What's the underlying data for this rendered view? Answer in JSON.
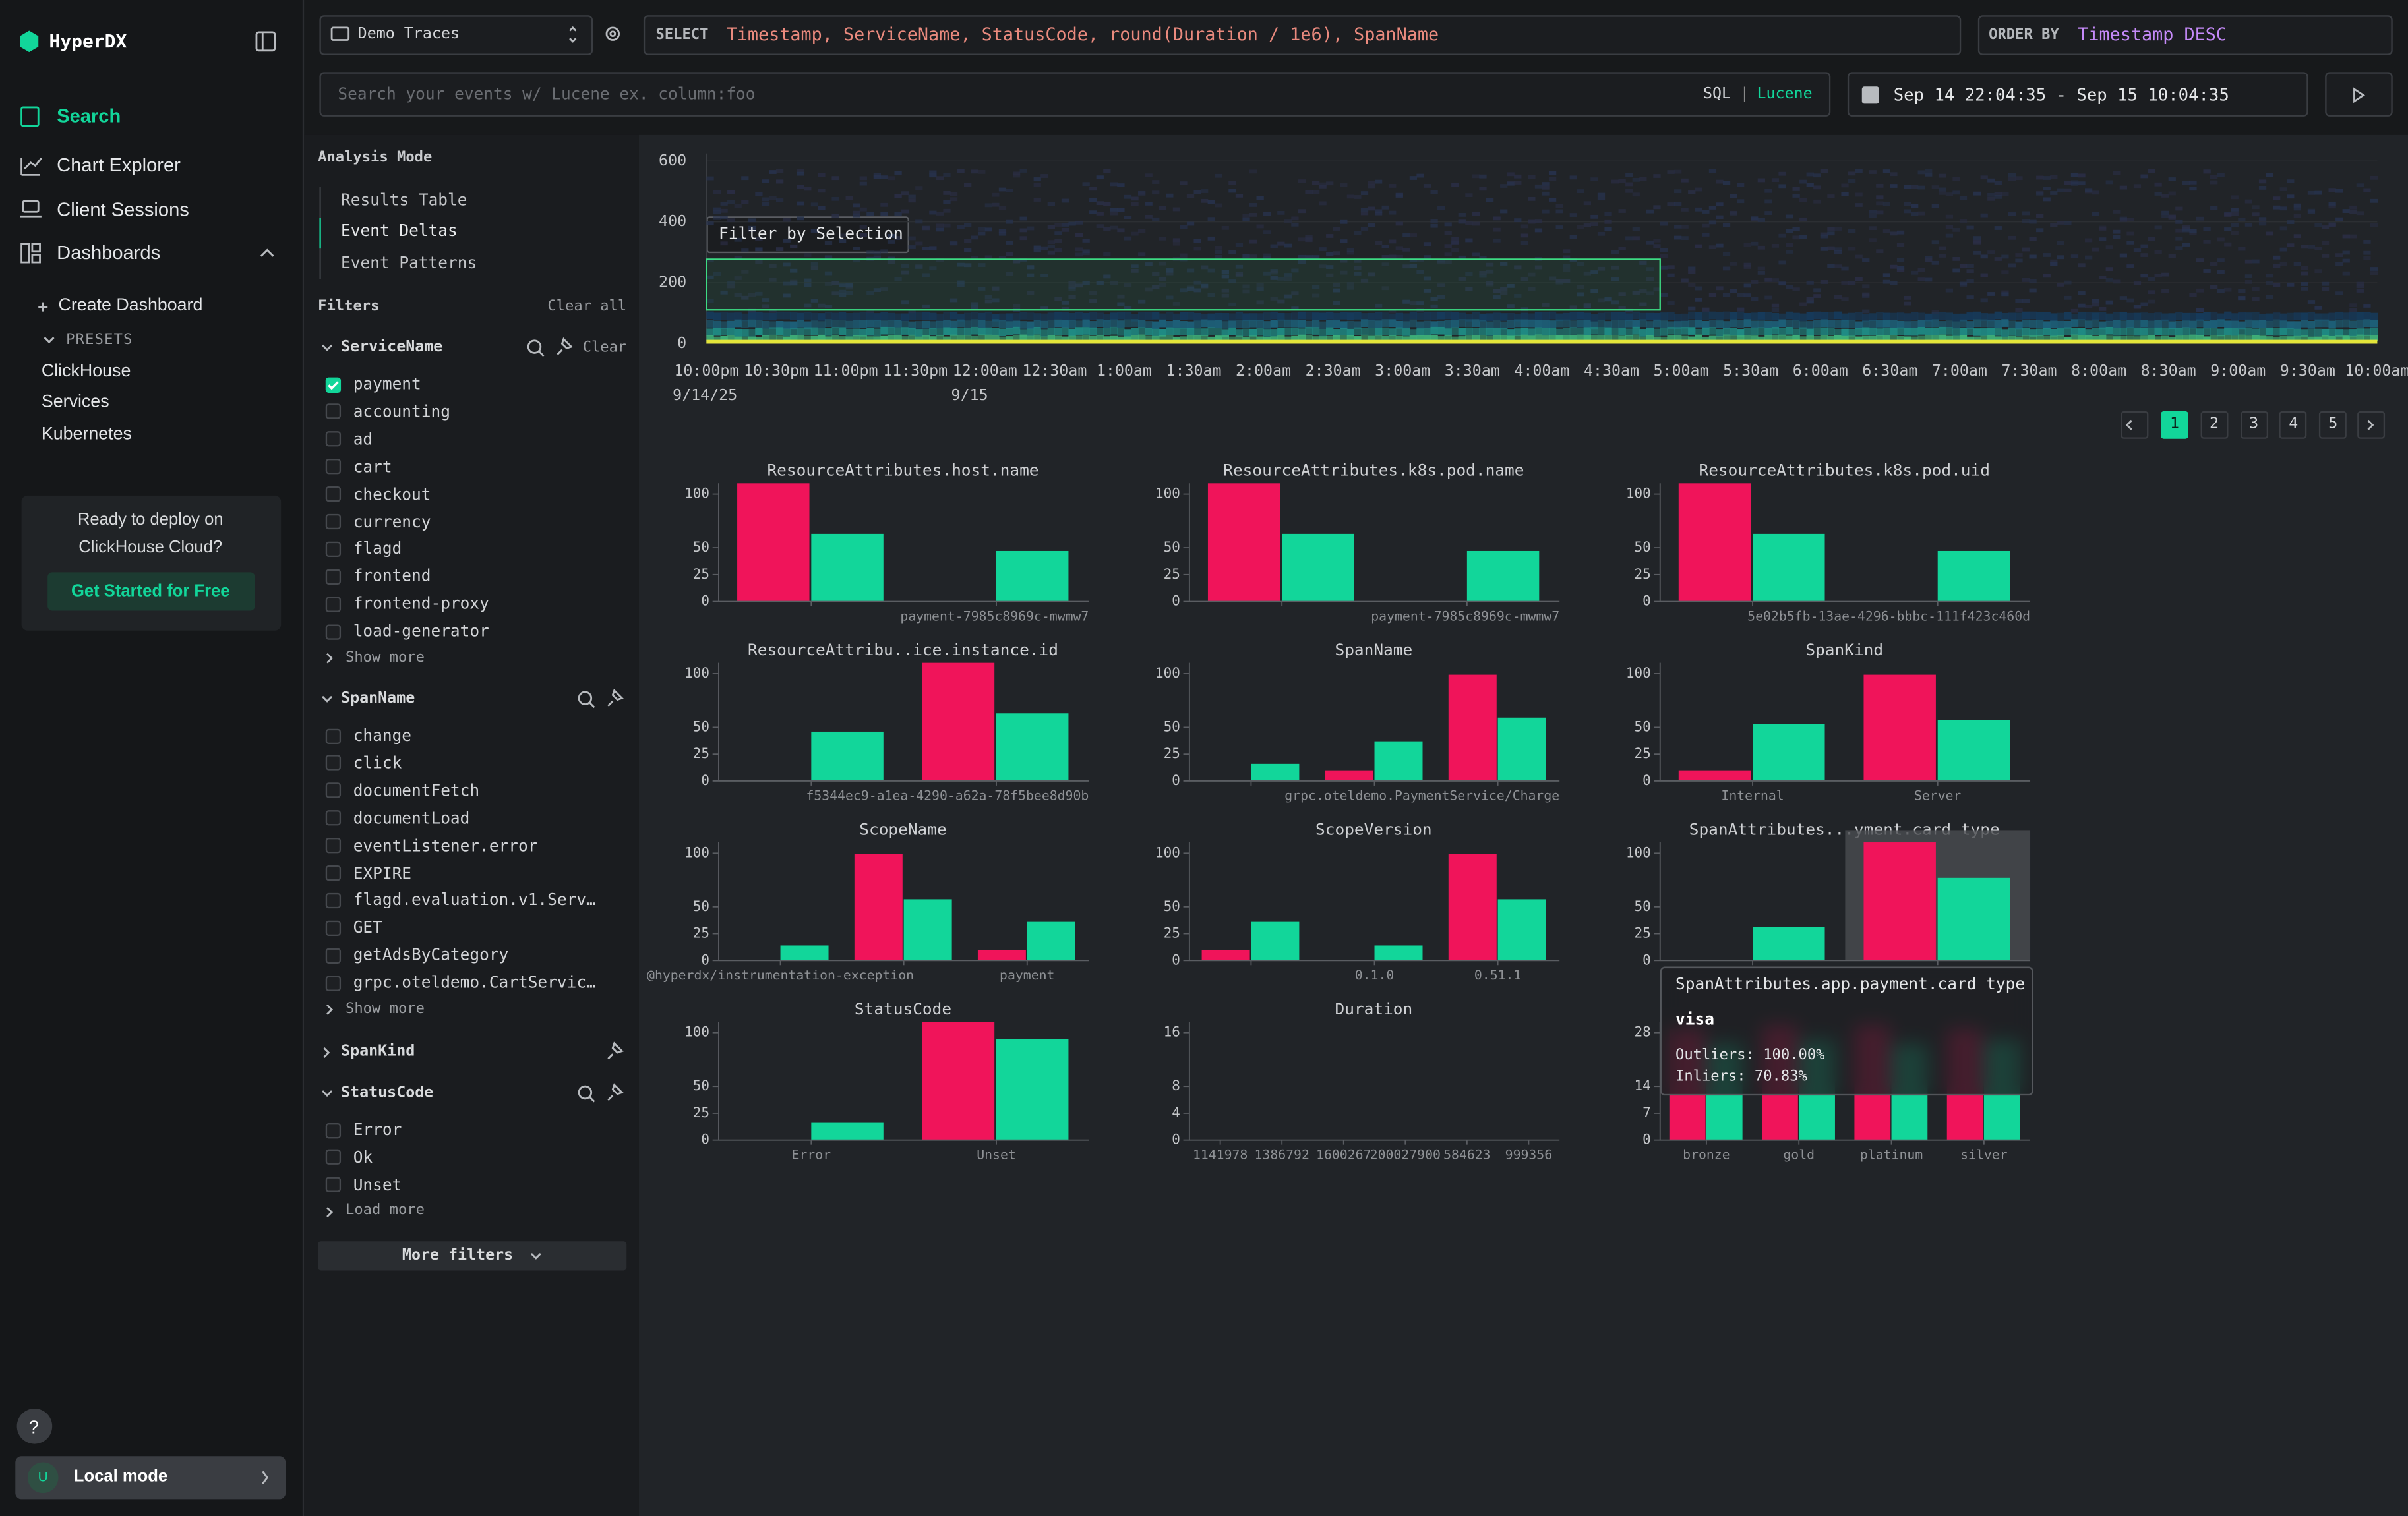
{
  "sidebar": {
    "logo": "HyperDX",
    "nav": [
      "Search",
      "Chart Explorer",
      "Client Sessions",
      "Dashboards"
    ],
    "create_dashboard": "Create Dashboard",
    "presets_label": "PRESETS",
    "presets": [
      "ClickHouse",
      "Services",
      "Kubernetes"
    ],
    "promo_text": "Ready to deploy on ClickHouse Cloud?",
    "promo_button": "Get Started for Free",
    "help": "?",
    "user_initial": "U",
    "user_mode": "Local mode"
  },
  "query": {
    "source": "Demo Traces",
    "select_keyword": "SELECT",
    "select_expression": "Timestamp, ServiceName, StatusCode, round(Duration / 1e6), SpanName",
    "order_keyword": "ORDER BY",
    "order_expression": "Timestamp DESC",
    "search_placeholder": "Search your events w/ Lucene ex. column:foo",
    "language_sql": "SQL",
    "language_separator": "|",
    "language_lucene": "Lucene",
    "time_range": "Sep 14 22:04:35 - Sep 15 10:04:35"
  },
  "analysis": {
    "label": "Analysis Mode",
    "options": [
      "Results Table",
      "Event Deltas",
      "Event Patterns"
    ],
    "selected": 1
  },
  "filters": {
    "label": "Filters",
    "clear_all": "Clear all",
    "groups": [
      {
        "name": "ServiceName",
        "clear": "Clear",
        "options": [
          "payment",
          "accounting",
          "ad",
          "cart",
          "checkout",
          "currency",
          "flagd",
          "frontend",
          "frontend-proxy",
          "load-generator"
        ],
        "checked": [
          0
        ],
        "more": "Show more"
      },
      {
        "name": "SpanName",
        "options": [
          "change",
          "click",
          "documentFetch",
          "documentLoad",
          "eventListener.error",
          "EXPIRE",
          "flagd.evaluation.v1.Serv…",
          "GET",
          "getAdsByCategory",
          "grpc.oteldemo.CartServic…"
        ],
        "checked": [],
        "more": "Show more"
      },
      {
        "name": "SpanKind"
      },
      {
        "name": "StatusCode",
        "options": [
          "Error",
          "Ok",
          "Unset"
        ],
        "checked": [],
        "more": "Load more"
      }
    ],
    "more_filters": "More filters"
  },
  "heatmap": {
    "ylim": [
      0,
      625
    ],
    "yticks": [
      0,
      200,
      400,
      600
    ],
    "xticks": [
      "10:00pm",
      "10:30pm",
      "11:00pm",
      "11:30pm",
      "12:00am",
      "12:30am",
      "1:00am",
      "1:30am",
      "2:00am",
      "2:30am",
      "3:00am",
      "3:30am",
      "4:00am",
      "4:30am",
      "5:00am",
      "5:30am",
      "6:00am",
      "6:30am",
      "7:00am",
      "7:30am",
      "8:00am",
      "8:30am",
      "9:00am",
      "9:30am",
      "10:00am"
    ],
    "xtick_dates": [
      "9/14/25",
      null,
      null,
      null,
      "9/15",
      null,
      null,
      null,
      null,
      null,
      null,
      null,
      null,
      null,
      null,
      null,
      null,
      null,
      null,
      null,
      null,
      null,
      null,
      null,
      null
    ],
    "selection_label": "Filter by Selection"
  },
  "pagination": {
    "pages": [
      1,
      2,
      3,
      4,
      5
    ],
    "current": 0
  },
  "chart_data": [
    {
      "type": "bar",
      "title": "ResourceAttributes.host.name",
      "categories": [
        null,
        "payment-7985c8969c-mwmw7"
      ],
      "ylim": [
        0,
        110
      ],
      "yticks": [
        0,
        25,
        50,
        100
      ],
      "series": [
        {
          "color": "#f0145a",
          "values": [
            110,
            0
          ]
        },
        {
          "color": "#12d69a",
          "values": [
            63,
            47
          ]
        }
      ]
    },
    {
      "type": "bar",
      "title": "ResourceAttributes.k8s.pod.name",
      "categories": [
        null,
        "payment-7985c8969c-mwmw7"
      ],
      "ylim": [
        0,
        110
      ],
      "yticks": [
        0,
        25,
        50,
        100
      ],
      "series": [
        {
          "color": "#f0145a",
          "values": [
            110,
            0
          ]
        },
        {
          "color": "#12d69a",
          "values": [
            63,
            47
          ]
        }
      ]
    },
    {
      "type": "bar",
      "title": "ResourceAttributes.k8s.pod.uid",
      "categories": [
        null,
        "5e02b5fb-13ae-4296-bbbc-111f423c460d"
      ],
      "ylim": [
        0,
        110
      ],
      "yticks": [
        0,
        25,
        50,
        100
      ],
      "series": [
        {
          "color": "#f0145a",
          "values": [
            110,
            0
          ]
        },
        {
          "color": "#12d69a",
          "values": [
            63,
            47
          ]
        }
      ]
    },
    {
      "type": "bar",
      "title": "ResourceAttribu..ice.instance.id",
      "categories": [
        null,
        "f5344ec9-a1ea-4290-a62a-78f5bee8d90b"
      ],
      "ylim": [
        0,
        110
      ],
      "yticks": [
        0,
        25,
        50,
        100
      ],
      "series": [
        {
          "color": "#f0145a",
          "values": [
            0,
            110
          ]
        },
        {
          "color": "#12d69a",
          "values": [
            46,
            63
          ]
        }
      ]
    },
    {
      "type": "bar",
      "title": "SpanName",
      "categories": [
        null,
        null,
        "grpc.oteldemo.PaymentService/Charge"
      ],
      "ylim": [
        0,
        110
      ],
      "yticks": [
        0,
        25,
        50,
        100
      ],
      "series": [
        {
          "color": "#f0145a",
          "values": [
            0,
            10,
            99
          ]
        },
        {
          "color": "#12d69a",
          "values": [
            16,
            37,
            59
          ]
        }
      ]
    },
    {
      "type": "bar",
      "title": "SpanKind",
      "categories": [
        "Internal",
        "Server"
      ],
      "ylim": [
        0,
        110
      ],
      "yticks": [
        0,
        25,
        50,
        100
      ],
      "series": [
        {
          "color": "#f0145a",
          "values": [
            10,
            99
          ]
        },
        {
          "color": "#12d69a",
          "values": [
            53,
            57
          ]
        }
      ]
    },
    {
      "type": "bar",
      "title": "ScopeName",
      "categories": [
        "@hyperdx/instrumentation-exception",
        null,
        "payment"
      ],
      "ylim": [
        0,
        110
      ],
      "yticks": [
        0,
        25,
        50,
        100
      ],
      "series": [
        {
          "color": "#f0145a",
          "values": [
            0,
            99,
            10
          ]
        },
        {
          "color": "#12d69a",
          "values": [
            14,
            57,
            36
          ]
        }
      ]
    },
    {
      "type": "bar",
      "title": "ScopeVersion",
      "categories": [
        null,
        "0.1.0",
        "0.51.1"
      ],
      "ylim": [
        0,
        110
      ],
      "yticks": [
        0,
        25,
        50,
        100
      ],
      "series": [
        {
          "color": "#f0145a",
          "values": [
            10,
            0,
            99
          ]
        },
        {
          "color": "#12d69a",
          "values": [
            36,
            14,
            57
          ]
        }
      ]
    },
    {
      "type": "bar",
      "title": "SpanAttributes...yment.card_type",
      "categories": [
        null,
        null
      ],
      "ylim": [
        0,
        110
      ],
      "yticks": [
        0,
        25,
        50,
        100
      ],
      "series": [
        {
          "color": "#f0145a",
          "values": [
            0,
            110
          ]
        },
        {
          "color": "#12d69a",
          "values": [
            31,
            77
          ]
        }
      ]
    },
    {
      "type": "bar",
      "title": "StatusCode",
      "categories": [
        "Error",
        "Unset"
      ],
      "ylim": [
        0,
        110
      ],
      "yticks": [
        0,
        25,
        50,
        100
      ],
      "series": [
        {
          "color": "#f0145a",
          "values": [
            0,
            110
          ]
        },
        {
          "color": "#12d69a",
          "values": [
            16,
            94
          ]
        }
      ]
    },
    {
      "type": "bar",
      "title": "Duration",
      "categories": [
        "1141978",
        "1386792",
        "1600267",
        "200027900",
        "584623",
        "999356"
      ],
      "ylim": [
        0,
        17.6
      ],
      "yticks": [
        0,
        4,
        8,
        16
      ],
      "series": [
        {
          "color": "#f0145a",
          "values": [
            0,
            0,
            0,
            0,
            0,
            0
          ]
        },
        {
          "color": "#12d69a",
          "values": [
            0,
            0,
            0,
            0,
            0,
            0
          ]
        }
      ]
    },
    {
      "type": "bar",
      "categories": [
        "bronze",
        "gold",
        "platinum",
        "silver"
      ],
      "ylim": [
        0,
        30.8
      ],
      "yticks": [
        0,
        7,
        14,
        28
      ],
      "series": [
        {
          "color": "#f0145a",
          "values": [
            29,
            30,
            30,
            29
          ]
        },
        {
          "color": "#12d69a",
          "values": [
            25,
            26,
            25,
            26
          ]
        }
      ]
    }
  ],
  "tooltip": {
    "title": "SpanAttributes.app.payment.card_type",
    "value": "visa",
    "outliers": "Outliers: 100.00%",
    "inliers": "Inliers: 70.83%"
  }
}
